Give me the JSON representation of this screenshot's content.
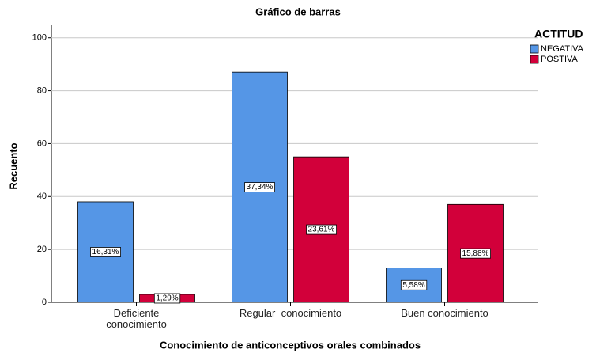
{
  "chart_data": {
    "type": "bar",
    "title": "Gráfico de barras",
    "x_label": "Conocimiento de anticonceptivos orales combinados",
    "y_label": "Recuento",
    "categories": [
      "Deficiente\nconocimiento",
      "Regular  conocimiento",
      "Buen conocimiento"
    ],
    "series": [
      {
        "name": "NEGATIVA",
        "color": "#5596e6",
        "values": [
          38,
          87,
          13
        ],
        "percent_labels": [
          "16,31%",
          "37,34%",
          "5,58%"
        ]
      },
      {
        "name": "POSTIVA",
        "color": "#d2003a",
        "values": [
          3,
          55,
          37
        ],
        "percent_labels": [
          "1,29%",
          "23,61%",
          "15,88%"
        ]
      }
    ],
    "legend_title": "ACTITUD",
    "legend": "right",
    "ylim": [
      0,
      105
    ],
    "yticks": [
      0,
      20,
      40,
      60,
      80,
      100
    ],
    "grid": true
  }
}
